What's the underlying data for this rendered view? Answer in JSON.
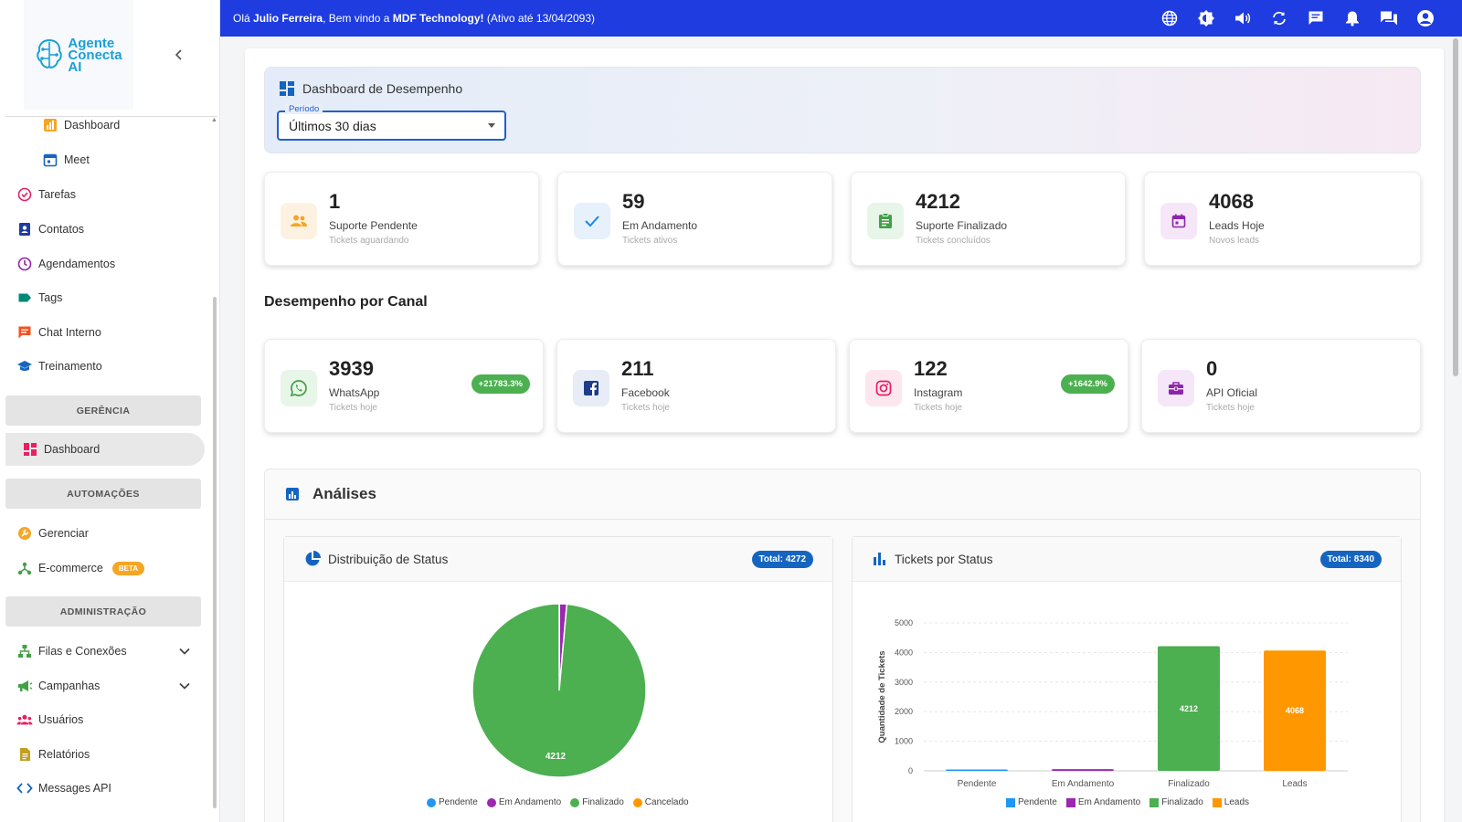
{
  "app": {
    "logo_lines": [
      "Agente",
      "Conecta",
      "AI"
    ]
  },
  "topbar": {
    "greeting_prefix": "Olá",
    "user": "Julio Ferreira",
    "middle": ", Bem vindo a",
    "company": "MDF Technology!",
    "suffix": "(Ativo até 13/04/2093)"
  },
  "sidebar": {
    "items": [
      {
        "label": "Dashboard",
        "icon": "dashboard-icon",
        "color": "#f5a623"
      },
      {
        "label": "Meet",
        "icon": "calendar-icon",
        "color": "#1565c0"
      },
      {
        "label": "Tarefas",
        "icon": "check-circle-icon",
        "color": "#e91e63"
      },
      {
        "label": "Contatos",
        "icon": "contacts-icon",
        "color": "#1e3ca0"
      },
      {
        "label": "Agendamentos",
        "icon": "clock-icon",
        "color": "#8e24aa"
      },
      {
        "label": "Tags",
        "icon": "tag-icon",
        "color": "#00897b"
      },
      {
        "label": "Chat Interno",
        "icon": "chat-icon",
        "color": "#f4511e"
      },
      {
        "label": "Treinamento",
        "icon": "school-icon",
        "color": "#1565c0"
      }
    ],
    "sections": {
      "gerencia": "GERÊNCIA",
      "automacoes": "AUTOMAÇÕES",
      "administracao": "ADMINISTRAÇÃO"
    },
    "gerencia_items": [
      {
        "label": "Dashboard",
        "icon": "dashboard-icon",
        "color": "#e91e63"
      }
    ],
    "automacoes_items": [
      {
        "label": "Gerenciar",
        "icon": "wrench-icon",
        "color": "#f5a623"
      },
      {
        "label": "E-commerce",
        "icon": "hub-icon",
        "color": "#43a047",
        "badge": "BETA"
      }
    ],
    "admin_items": [
      {
        "label": "Filas e Conexões",
        "icon": "sitemap-icon",
        "color": "#43a047"
      },
      {
        "label": "Campanhas",
        "icon": "megaphone-icon",
        "color": "#43a047"
      },
      {
        "label": "Usuários",
        "icon": "users-icon",
        "color": "#e91e63"
      },
      {
        "label": "Relatórios",
        "icon": "report-icon",
        "color": "#c0a020"
      },
      {
        "label": "Messages API",
        "icon": "code-icon",
        "color": "#1565c0"
      }
    ]
  },
  "header": {
    "title": "Dashboard de Desempenho",
    "period_label": "Período",
    "period_value": "Últimos 30 dias"
  },
  "stats": [
    {
      "value": "1",
      "label": "Suporte Pendente",
      "sub": "Tickets aguardando",
      "icon": "people-icon",
      "color": "#f5a623",
      "bg": "#fdf2e2"
    },
    {
      "value": "59",
      "label": "Em Andamento",
      "sub": "Tickets ativos",
      "icon": "check-icon",
      "color": "#1e88e5",
      "bg": "#e6f1fc"
    },
    {
      "value": "4212",
      "label": "Suporte Finalizado",
      "sub": "Tickets concluídos",
      "icon": "clipboard-icon",
      "color": "#43a047",
      "bg": "#e8f5e9"
    },
    {
      "value": "4068",
      "label": "Leads Hoje",
      "sub": "Novos leads",
      "icon": "calendar-icon",
      "color": "#8e24aa",
      "bg": "#f5e7f8"
    }
  ],
  "channels_title": "Desempenho por Canal",
  "channels": [
    {
      "value": "3939",
      "label": "WhatsApp",
      "sub": "Tickets hoje",
      "growth": "+21783.3%",
      "icon": "whatsapp-icon",
      "color": "#43a047",
      "bg": "#e8f5e9"
    },
    {
      "value": "211",
      "label": "Facebook",
      "sub": "Tickets hoje",
      "growth": "",
      "icon": "facebook-icon",
      "color": "#1e3c8a",
      "bg": "#e8ecf6"
    },
    {
      "value": "122",
      "label": "Instagram",
      "sub": "Tickets hoje",
      "growth": "+1642.9%",
      "icon": "instagram-icon",
      "color": "#e91e63",
      "bg": "#fde7ef"
    },
    {
      "value": "0",
      "label": "API Oficial",
      "sub": "Tickets hoje",
      "growth": "",
      "icon": "briefcase-icon",
      "color": "#8e24aa",
      "bg": "#f5e7f8"
    }
  ],
  "analysis": {
    "title": "Análises",
    "pie_title": "Distribuição de Status",
    "pie_total": "Total: 4272",
    "bar_title": "Tickets por Status",
    "bar_total": "Total: 8340"
  },
  "chart_data": [
    {
      "type": "pie",
      "title": "Distribuição de Status",
      "categories": [
        "Pendente",
        "Em Andamento",
        "Finalizado",
        "Cancelado"
      ],
      "values": [
        1,
        59,
        4212,
        0
      ],
      "colors": [
        "#2196f3",
        "#9c27b0",
        "#4caf50",
        "#ff9800"
      ],
      "data_labels": [
        "",
        "",
        "4212",
        ""
      ],
      "legend": "bottom"
    },
    {
      "type": "bar",
      "title": "Tickets por Status",
      "categories": [
        "Pendente",
        "Em Andamento",
        "Finalizado",
        "Leads"
      ],
      "values": [
        1,
        59,
        4212,
        4068
      ],
      "colors": [
        "#2196f3",
        "#9c27b0",
        "#4caf50",
        "#ff9800"
      ],
      "ylabel": "Quantidade de Tickets",
      "ylim": [
        0,
        5000
      ],
      "yticks": [
        0,
        1000,
        2000,
        3000,
        4000,
        5000
      ],
      "data_labels": [
        "",
        "",
        "4212",
        "4068"
      ],
      "grid": true,
      "legend": "bottom"
    }
  ]
}
